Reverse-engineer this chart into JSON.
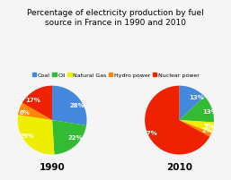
{
  "title": "Percentage of electricity production by fuel\nsource in France in 1990 and 2010",
  "legend_labels": [
    "Coal",
    "Oil",
    "Natural Gas",
    "Hydro power",
    "Nuclear power"
  ],
  "colors": [
    "#4488DD",
    "#33BB33",
    "#EEEE00",
    "#FF8800",
    "#EE2200"
  ],
  "pie1_values": [
    28,
    22,
    29,
    6,
    17
  ],
  "pie1_labels": [
    "28%",
    "22%",
    "29%",
    "6%",
    "17%"
  ],
  "pie1_year": "1990",
  "pie2_values": [
    13,
    13,
    5,
    2,
    67
  ],
  "pie2_labels": [
    "13%",
    "13%",
    "5%",
    "2%",
    "67%"
  ],
  "pie2_year": "2010",
  "background_color": "#f5f5f5",
  "title_fontsize": 6.5,
  "label_fontsize": 5.0,
  "year_fontsize": 7.5,
  "legend_fontsize": 4.5
}
